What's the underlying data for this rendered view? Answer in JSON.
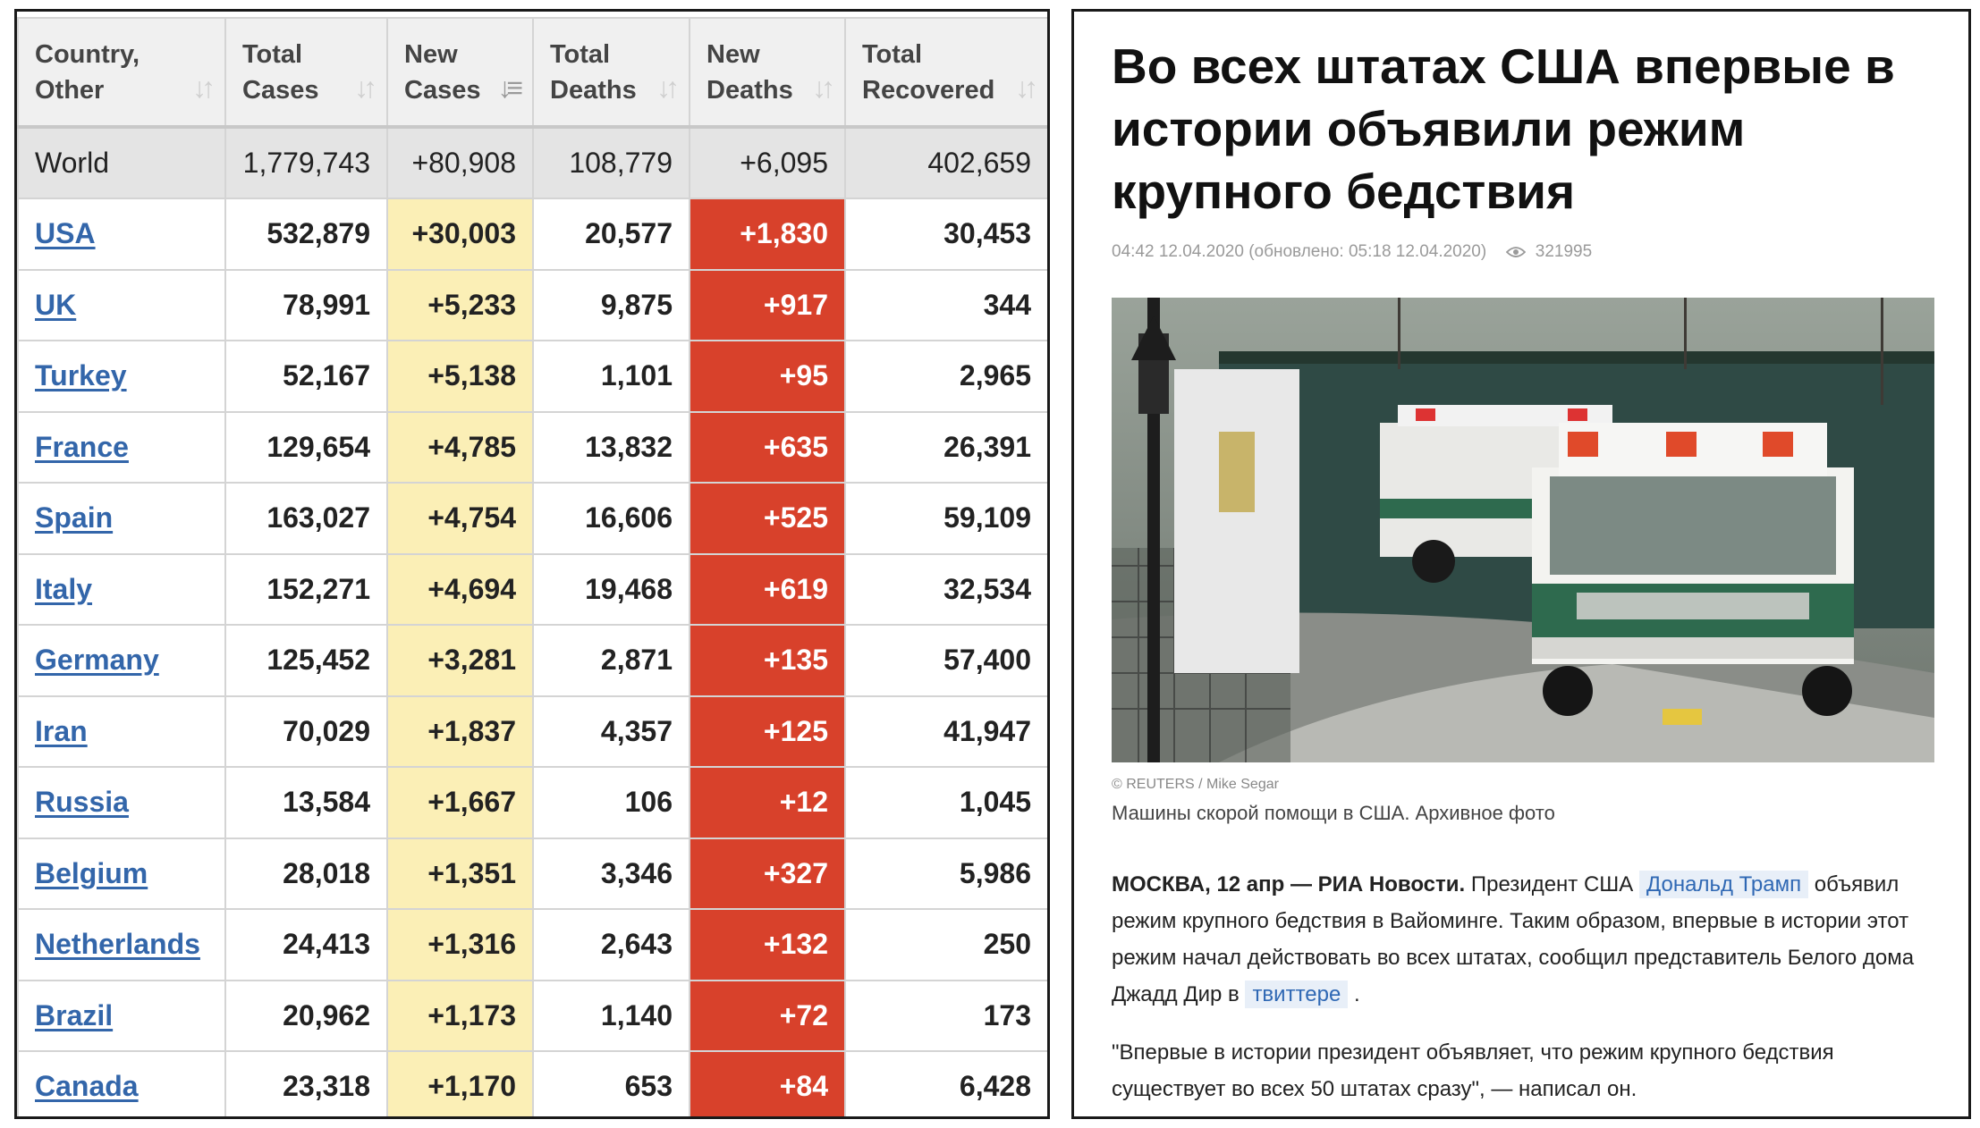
{
  "table": {
    "headers": [
      {
        "line1": "Country,",
        "line2": "Other"
      },
      {
        "line1": "Total",
        "line2": "Cases"
      },
      {
        "line1": "New",
        "line2": "Cases"
      },
      {
        "line1": "Total",
        "line2": "Deaths"
      },
      {
        "line1": "New",
        "line2": "Deaths"
      },
      {
        "line1": "Total",
        "line2": "Recovered"
      }
    ],
    "world": {
      "name": "World",
      "total_cases": "1,779,743",
      "new_cases": "+80,908",
      "total_deaths": "108,779",
      "new_deaths": "+6,095",
      "total_recovered": "402,659"
    },
    "rows": [
      {
        "country": "USA",
        "total_cases": "532,879",
        "new_cases": "+30,003",
        "total_deaths": "20,577",
        "new_deaths": "+1,830",
        "total_recovered": "30,453"
      },
      {
        "country": "UK",
        "total_cases": "78,991",
        "new_cases": "+5,233",
        "total_deaths": "9,875",
        "new_deaths": "+917",
        "total_recovered": "344"
      },
      {
        "country": "Turkey",
        "total_cases": "52,167",
        "new_cases": "+5,138",
        "total_deaths": "1,101",
        "new_deaths": "+95",
        "total_recovered": "2,965"
      },
      {
        "country": "France",
        "total_cases": "129,654",
        "new_cases": "+4,785",
        "total_deaths": "13,832",
        "new_deaths": "+635",
        "total_recovered": "26,391"
      },
      {
        "country": "Spain",
        "total_cases": "163,027",
        "new_cases": "+4,754",
        "total_deaths": "16,606",
        "new_deaths": "+525",
        "total_recovered": "59,109"
      },
      {
        "country": "Italy",
        "total_cases": "152,271",
        "new_cases": "+4,694",
        "total_deaths": "19,468",
        "new_deaths": "+619",
        "total_recovered": "32,534"
      },
      {
        "country": "Germany",
        "total_cases": "125,452",
        "new_cases": "+3,281",
        "total_deaths": "2,871",
        "new_deaths": "+135",
        "total_recovered": "57,400"
      },
      {
        "country": "Iran",
        "total_cases": "70,029",
        "new_cases": "+1,837",
        "total_deaths": "4,357",
        "new_deaths": "+125",
        "total_recovered": "41,947"
      },
      {
        "country": "Russia",
        "total_cases": "13,584",
        "new_cases": "+1,667",
        "total_deaths": "106",
        "new_deaths": "+12",
        "total_recovered": "1,045"
      },
      {
        "country": "Belgium",
        "total_cases": "28,018",
        "new_cases": "+1,351",
        "total_deaths": "3,346",
        "new_deaths": "+327",
        "total_recovered": "5,986"
      },
      {
        "country": "Netherlands",
        "total_cases": "24,413",
        "new_cases": "+1,316",
        "total_deaths": "2,643",
        "new_deaths": "+132",
        "total_recovered": "250"
      },
      {
        "country": "Brazil",
        "total_cases": "20,962",
        "new_cases": "+1,173",
        "total_deaths": "1,140",
        "new_deaths": "+72",
        "total_recovered": "173"
      },
      {
        "country": "Canada",
        "total_cases": "23,318",
        "new_cases": "+1,170",
        "total_deaths": "653",
        "new_deaths": "+84",
        "total_recovered": "6,428"
      }
    ],
    "colors": {
      "new_cases_bg": "#fbefb6",
      "new_deaths_bg": "#d8412b",
      "link": "#3366aa"
    }
  },
  "article": {
    "title": "Во всех штатах США впервые в истории объявили режим крупного бедствия",
    "meta": "04:42 12.04.2020 (обновлено: 05:18 12.04.2020)",
    "views": "321995",
    "photo_icon": "ambulance-photo",
    "credit": "© REUTERS / Mike Segar",
    "caption": "Машины скорой помощи в США. Архивное фото",
    "lead_bold": "МОСКВА, 12 апр — РИА Новости.",
    "lead_1": " Президент США ",
    "tag_1": "Дональд Трамп",
    "lead_2": " объявил режим крупного бедствия в Вайоминге. Таким образом, впервые в истории этот режим начал действовать во всех штатах, сообщил представитель Белого дома Джадд Дир в ",
    "tag_2": "твиттере",
    "lead_3": " .",
    "quote": "\"Впервые в истории президент объявляет, что режим крупного бедствия существует во всех 50 штатах сразу\", — написал он."
  }
}
